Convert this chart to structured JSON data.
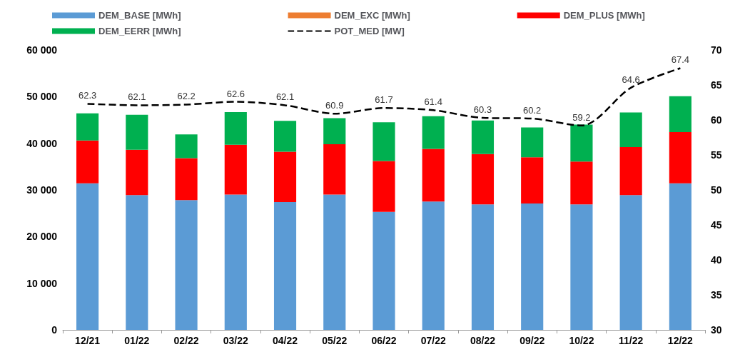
{
  "chart_data": {
    "type": "bar",
    "stacked": true,
    "legend": "top",
    "categories": [
      "12/21",
      "01/22",
      "02/22",
      "03/22",
      "04/22",
      "05/22",
      "06/22",
      "07/22",
      "08/22",
      "09/22",
      "10/22",
      "11/22",
      "12/22"
    ],
    "series": [
      {
        "name": "DEM_BASE [MWh]",
        "color": "#5b9bd5",
        "values": [
          31400,
          28900,
          27800,
          29000,
          27400,
          29000,
          25300,
          27500,
          26900,
          27100,
          26900,
          28900,
          31400
        ]
      },
      {
        "name": "DEM_EXC [MWh]",
        "color": "#ed7d31",
        "values": [
          0,
          0,
          0,
          0,
          0,
          0,
          0,
          0,
          0,
          0,
          0,
          0,
          0
        ]
      },
      {
        "name": "DEM_PLUS [MWh]",
        "color": "#ff0000",
        "values": [
          9200,
          9700,
          9000,
          10700,
          10800,
          10800,
          10900,
          11300,
          10800,
          9900,
          9200,
          10300,
          11000
        ]
      },
      {
        "name": "DEM_EERR [MWh]",
        "color": "#00b050",
        "values": [
          5800,
          7500,
          5100,
          7000,
          6600,
          5600,
          8300,
          7000,
          7200,
          6400,
          7900,
          7400,
          7700
        ]
      },
      {
        "name": "POT_MED [MW]",
        "type": "line",
        "axis": "y2",
        "color": "#000000",
        "line_style": "dashed",
        "marker": "none",
        "values": [
          62.3,
          62.1,
          62.2,
          62.6,
          62.1,
          60.9,
          61.7,
          61.4,
          60.3,
          60.2,
          59.2,
          64.6,
          67.4
        ],
        "value_labels": [
          "62.3",
          "62.1",
          "62.2",
          "62.6",
          "62.1",
          "60.9",
          "61.7",
          "61.4",
          "60.3",
          "60.2",
          "59.2",
          "64.6",
          "67.4"
        ]
      }
    ],
    "ylim": [
      0,
      60000
    ],
    "yticks": [
      {
        "value": 0,
        "label": "0"
      },
      {
        "value": 10000,
        "label": "10 000"
      },
      {
        "value": 20000,
        "label": "20 000"
      },
      {
        "value": 30000,
        "label": "30 000"
      },
      {
        "value": 40000,
        "label": "40 000"
      },
      {
        "value": 50000,
        "label": "50 000"
      },
      {
        "value": 60000,
        "label": "60 000"
      }
    ],
    "y2lim": [
      30,
      70
    ],
    "y2ticks": [
      30,
      35,
      40,
      45,
      50,
      55,
      60,
      65,
      70
    ]
  }
}
